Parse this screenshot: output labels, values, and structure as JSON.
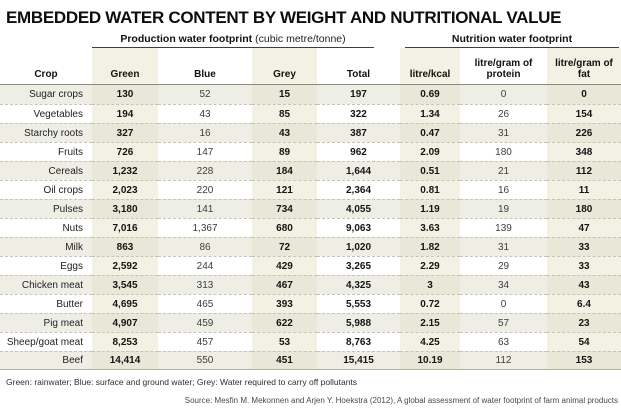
{
  "chart_data": {
    "type": "table",
    "title": "EMBEDDED WATER CONTENT BY WEIGHT AND NUTRITIONAL VALUE",
    "column_groups": [
      {
        "label": "Production water footprint",
        "unit": "(cubic metre/tonne)",
        "spans": [
          "Green",
          "Blue",
          "Grey",
          "Total"
        ]
      },
      {
        "label": "Nutrition water footprint",
        "unit": "",
        "spans": [
          "litre/kcal",
          "litre/gram of protein",
          "litre/gram of fat"
        ]
      }
    ],
    "columns": [
      "Crop",
      "Green",
      "Blue",
      "Grey",
      "Total",
      "litre/kcal",
      "litre/gram of protein",
      "litre/gram of fat"
    ],
    "rows": [
      [
        "Sugar crops",
        "130",
        "52",
        "15",
        "197",
        "0.69",
        "0",
        "0"
      ],
      [
        "Vegetables",
        "194",
        "43",
        "85",
        "322",
        "1.34",
        "26",
        "154"
      ],
      [
        "Starchy roots",
        "327",
        "16",
        "43",
        "387",
        "0.47",
        "31",
        "226"
      ],
      [
        "Fruits",
        "726",
        "147",
        "89",
        "962",
        "2.09",
        "180",
        "348"
      ],
      [
        "Cereals",
        "1,232",
        "228",
        "184",
        "1,644",
        "0.51",
        "21",
        "112"
      ],
      [
        "Oil crops",
        "2,023",
        "220",
        "121",
        "2,364",
        "0.81",
        "16",
        "11"
      ],
      [
        "Pulses",
        "3,180",
        "141",
        "734",
        "4,055",
        "1.19",
        "19",
        "180"
      ],
      [
        "Nuts",
        "7,016",
        "1,367",
        "680",
        "9,063",
        "3.63",
        "139",
        "47"
      ],
      [
        "Milk",
        "863",
        "86",
        "72",
        "1,020",
        "1.82",
        "31",
        "33"
      ],
      [
        "Eggs",
        "2,592",
        "244",
        "429",
        "3,265",
        "2.29",
        "29",
        "33"
      ],
      [
        "Chicken meat",
        "3,545",
        "313",
        "467",
        "4,325",
        "3",
        "34",
        "43"
      ],
      [
        "Butter",
        "4,695",
        "465",
        "393",
        "5,553",
        "0.72",
        "0",
        "6.4"
      ],
      [
        "Pig meat",
        "4,907",
        "459",
        "622",
        "5,988",
        "2.15",
        "57",
        "23"
      ],
      [
        "Sheep/goat meat",
        "8,253",
        "457",
        "53",
        "8,763",
        "4.25",
        "63",
        "54"
      ],
      [
        "Beef",
        "14,414",
        "550",
        "451",
        "15,415",
        "10.19",
        "112",
        "153"
      ]
    ],
    "footnote": "Green: rainwater; Blue: surface and ground water; Grey: Water required to carry off pollutants",
    "source": "Source: Mesfin M. Mekonnen and Arjen Y. Hoekstra (2012), A global assessment of water footprint of farm animal products",
    "colors": {
      "tint_row_odd": "#e9e7d7",
      "tint_row_even": "#f3f1e3",
      "plain_row_odd": "#efeee5",
      "plain_row_even": "#ffffff",
      "group_rule": "#3f3e39",
      "header_rule": "#8b8a82",
      "row_dash": "#c6c4b8"
    }
  }
}
